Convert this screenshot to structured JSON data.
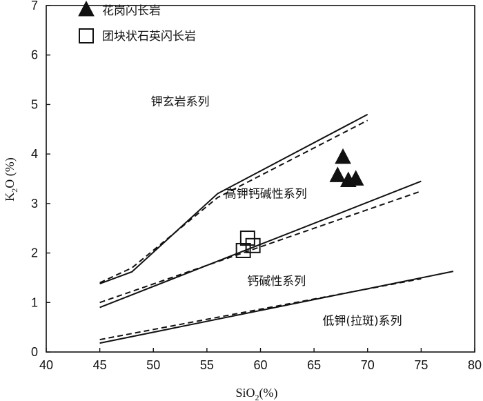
{
  "chart_data": {
    "type": "scatter",
    "xlabel": {
      "main": "SiO",
      "sub": "2",
      "rest": "(%)"
    },
    "ylabel": {
      "main": "K",
      "sub": "2",
      "rest": "O (%)"
    },
    "xlim": [
      40,
      80
    ],
    "ylim": [
      0,
      7
    ],
    "xticks": [
      "40",
      "45",
      "50",
      "55",
      "60",
      "65",
      "70",
      "75",
      "80"
    ],
    "yticks": [
      "0",
      "1",
      "2",
      "3",
      "4",
      "5",
      "6",
      "7"
    ],
    "legend": [
      {
        "label": "花岗闪长岩",
        "marker": "filled-triangle"
      },
      {
        "label": "团块状石英闪长岩",
        "marker": "open-square"
      }
    ],
    "series": [
      {
        "name": "花岗闪长岩",
        "marker": "filled-triangle",
        "points": [
          [
            67.7,
            3.92
          ],
          [
            67.2,
            3.55
          ],
          [
            68.2,
            3.45
          ],
          [
            68.9,
            3.48
          ]
        ]
      },
      {
        "name": "团块状石英闪长岩",
        "marker": "open-square",
        "points": [
          [
            58.8,
            2.3
          ],
          [
            59.3,
            2.15
          ],
          [
            58.4,
            2.05
          ]
        ]
      }
    ],
    "boundaries": [
      {
        "style": "solid",
        "points": [
          [
            45,
            1.38
          ],
          [
            48,
            1.62
          ],
          [
            56,
            3.2
          ],
          [
            70,
            4.8
          ]
        ]
      },
      {
        "style": "dashed",
        "points": [
          [
            45,
            1.4
          ],
          [
            48,
            1.7
          ],
          [
            56,
            3.12
          ],
          [
            70,
            4.68
          ]
        ]
      },
      {
        "style": "solid",
        "points": [
          [
            45,
            0.9
          ],
          [
            75,
            3.45
          ]
        ]
      },
      {
        "style": "dashed",
        "points": [
          [
            45,
            1.0
          ],
          [
            75,
            3.25
          ]
        ]
      },
      {
        "style": "solid",
        "points": [
          [
            45,
            0.18
          ],
          [
            78,
            1.63
          ]
        ]
      },
      {
        "style": "dashed",
        "points": [
          [
            45,
            0.25
          ],
          [
            75,
            1.48
          ]
        ]
      }
    ],
    "field_labels": [
      {
        "text": "钾玄岩系列",
        "x": 52.5,
        "y": 4.98
      },
      {
        "text": "高钾钙碱性系列",
        "x": 60.5,
        "y": 3.12
      },
      {
        "text": "钙碱性系列",
        "x": 61.5,
        "y": 1.35
      },
      {
        "text": "低钾(拉斑)系列",
        "x": 69.5,
        "y": 0.55
      }
    ],
    "grid": false
  }
}
